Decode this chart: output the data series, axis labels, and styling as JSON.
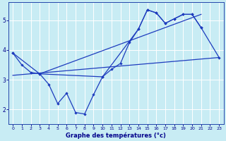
{
  "title": "Graphe des températures (°c)",
  "background_color": "#c8ecf4",
  "grid_color": "#ffffff",
  "line_color": "#1e3cbe",
  "xlim": [
    -0.5,
    23.5
  ],
  "ylim": [
    1.5,
    5.6
  ],
  "xticks": [
    0,
    1,
    2,
    3,
    4,
    5,
    6,
    7,
    8,
    9,
    10,
    11,
    12,
    13,
    14,
    15,
    16,
    17,
    18,
    19,
    20,
    21,
    22,
    23
  ],
  "yticks": [
    2,
    3,
    4,
    5
  ],
  "curve_main": {
    "x": [
      0,
      1,
      2,
      3,
      4,
      5,
      6,
      7,
      8,
      9,
      10,
      11,
      12,
      13,
      14,
      15,
      16,
      17,
      18,
      19,
      20,
      21
    ],
    "y": [
      3.9,
      3.5,
      3.25,
      3.2,
      2.85,
      2.2,
      2.55,
      1.9,
      1.85,
      2.5,
      3.1,
      3.35,
      3.55,
      4.25,
      4.7,
      5.35,
      5.25,
      4.9,
      5.05,
      5.2,
      5.2,
      4.75
    ]
  },
  "curve_outer": {
    "x": [
      0,
      3,
      10,
      14,
      15,
      16,
      17,
      18,
      19,
      20,
      21,
      23
    ],
    "y": [
      3.9,
      3.2,
      3.1,
      4.7,
      5.35,
      5.25,
      4.9,
      5.05,
      5.2,
      5.2,
      4.75,
      3.75
    ]
  },
  "reg_upper": {
    "x": [
      3,
      21
    ],
    "y": [
      3.2,
      5.2
    ]
  },
  "reg_lower": {
    "x": [
      0,
      23
    ],
    "y": [
      3.15,
      3.75
    ]
  }
}
